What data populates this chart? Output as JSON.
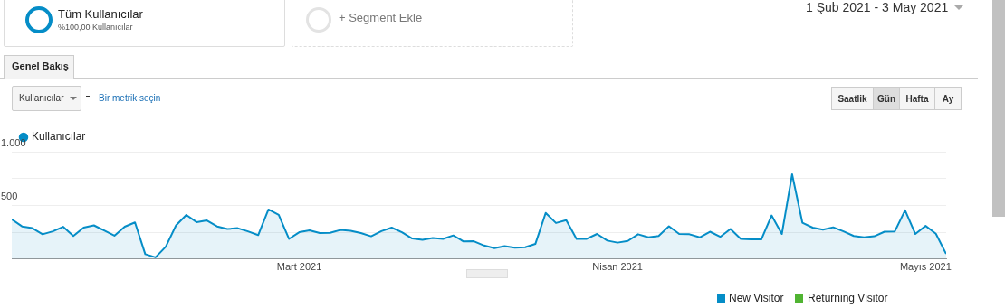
{
  "chart_data": {
    "type": "area",
    "x": [
      "2021-02-01",
      "2021-02-02",
      "2021-02-03",
      "2021-02-04",
      "2021-02-05",
      "2021-02-06",
      "2021-02-07",
      "2021-02-08",
      "2021-02-09",
      "2021-02-10",
      "2021-02-11",
      "2021-02-12",
      "2021-02-13",
      "2021-02-14",
      "2021-02-15",
      "2021-02-16",
      "2021-02-17",
      "2021-02-18",
      "2021-02-19",
      "2021-02-20",
      "2021-02-21",
      "2021-02-22",
      "2021-02-23",
      "2021-02-24",
      "2021-02-25",
      "2021-02-26",
      "2021-02-27",
      "2021-02-28",
      "2021-03-01",
      "2021-03-02",
      "2021-03-03",
      "2021-03-04",
      "2021-03-05",
      "2021-03-06",
      "2021-03-07",
      "2021-03-08",
      "2021-03-09",
      "2021-03-10",
      "2021-03-11",
      "2021-03-12",
      "2021-03-13",
      "2021-03-14",
      "2021-03-15",
      "2021-03-16",
      "2021-03-17",
      "2021-03-18",
      "2021-03-19",
      "2021-03-20",
      "2021-03-21",
      "2021-03-22",
      "2021-03-23",
      "2021-03-24",
      "2021-03-25",
      "2021-03-26",
      "2021-03-27",
      "2021-03-28",
      "2021-03-29",
      "2021-03-30",
      "2021-03-31",
      "2021-04-01",
      "2021-04-02",
      "2021-04-03",
      "2021-04-04",
      "2021-04-05",
      "2021-04-06",
      "2021-04-07",
      "2021-04-08",
      "2021-04-09",
      "2021-04-10",
      "2021-04-11",
      "2021-04-12",
      "2021-04-13",
      "2021-04-14",
      "2021-04-15",
      "2021-04-16",
      "2021-04-17",
      "2021-04-18",
      "2021-04-19",
      "2021-04-20",
      "2021-04-21",
      "2021-04-22",
      "2021-04-23",
      "2021-04-24",
      "2021-04-25",
      "2021-04-26",
      "2021-04-27",
      "2021-04-28",
      "2021-04-29",
      "2021-04-30",
      "2021-05-01",
      "2021-05-02",
      "2021-05-03"
    ],
    "series": [
      {
        "name": "Kullanıcılar",
        "color": "#058dc7",
        "values": [
          371,
          304,
          288,
          231,
          258,
          301,
          215,
          293,
          314,
          266,
          218,
          301,
          341,
          46,
          16,
          115,
          314,
          411,
          344,
          360,
          304,
          280,
          288,
          258,
          223,
          462,
          411,
          188,
          250,
          268,
          242,
          244,
          271,
          264,
          242,
          212,
          260,
          293,
          250,
          191,
          180,
          196,
          188,
          220,
          164,
          166,
          126,
          102,
          121,
          105,
          110,
          142,
          430,
          336,
          363,
          188,
          188,
          234,
          172,
          153,
          169,
          231,
          202,
          215,
          306,
          234,
          231,
          202,
          255,
          207,
          280,
          188,
          183,
          183,
          406,
          234,
          790,
          339,
          293,
          274,
          296,
          258,
          215,
          202,
          212,
          255,
          258,
          454,
          234,
          309,
          236,
          48
        ]
      }
    ],
    "xlim": [
      "2021-02-01",
      "2021-05-03"
    ],
    "xticks": [
      {
        "value": "2021-03-01",
        "label": "Mart 2021"
      },
      {
        "value": "2021-04-01",
        "label": "Nisan 2021"
      },
      {
        "value": "2021-05-01",
        "label": "Mayıs 2021"
      }
    ],
    "ylim": [
      0,
      1000
    ],
    "yticks": [
      {
        "value": 0,
        "label": null
      },
      {
        "value": 250,
        "label": null
      },
      500,
      {
        "value": 750,
        "label": null
      },
      {
        "value": 1000,
        "label": "1.000"
      }
    ],
    "grid": "y",
    "legend": "top left",
    "marker": "none",
    "line_style": "solid",
    "annotations": [
      "Tüm Kullanıcılar",
      "%100,00 Kullanıcılar",
      "+ Segment Ekle",
      "1 Şub 2021 - 3 May 2021",
      "Genel Bakış",
      "Kullanıcılar",
      "Bir metrik seçin",
      "Saatlik",
      "Gün",
      "Hafta",
      "Ay",
      "New Visitor",
      "Returning Visitor"
    ]
  }
}
